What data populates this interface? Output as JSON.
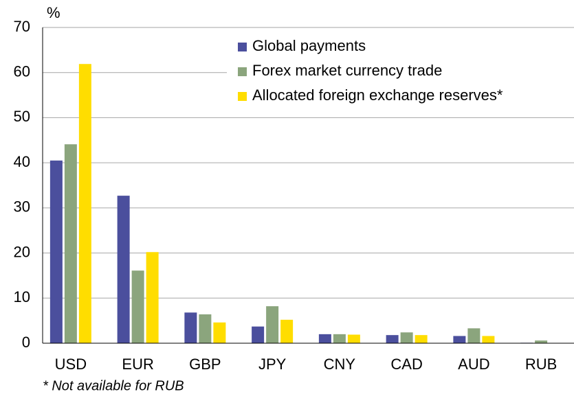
{
  "chart_data": {
    "type": "bar",
    "y_label": "%",
    "note": "* Not available for RUB",
    "categories": [
      "USD",
      "EUR",
      "GBP",
      "JPY",
      "CNY",
      "CAD",
      "AUD",
      "RUB"
    ],
    "series": [
      {
        "name": "Global payments",
        "color": "#4b4f9d",
        "values": [
          40.5,
          32.7,
          6.8,
          3.7,
          2.0,
          1.8,
          1.6,
          0.1
        ]
      },
      {
        "name": "Forex market currency trade",
        "color": "#8ba57d",
        "values": [
          44.1,
          16.1,
          6.4,
          8.2,
          2.0,
          2.4,
          3.3,
          0.6
        ]
      },
      {
        "name": "Allocated foreign exchange reserves*",
        "color": "#ffdd00",
        "values": [
          61.9,
          20.2,
          4.6,
          5.2,
          1.9,
          1.8,
          1.6,
          null
        ]
      }
    ],
    "ylim": [
      0,
      70
    ],
    "yticks": [
      0,
      10,
      20,
      30,
      40,
      50,
      60,
      70
    ],
    "grid": true,
    "legend": "upper right"
  }
}
